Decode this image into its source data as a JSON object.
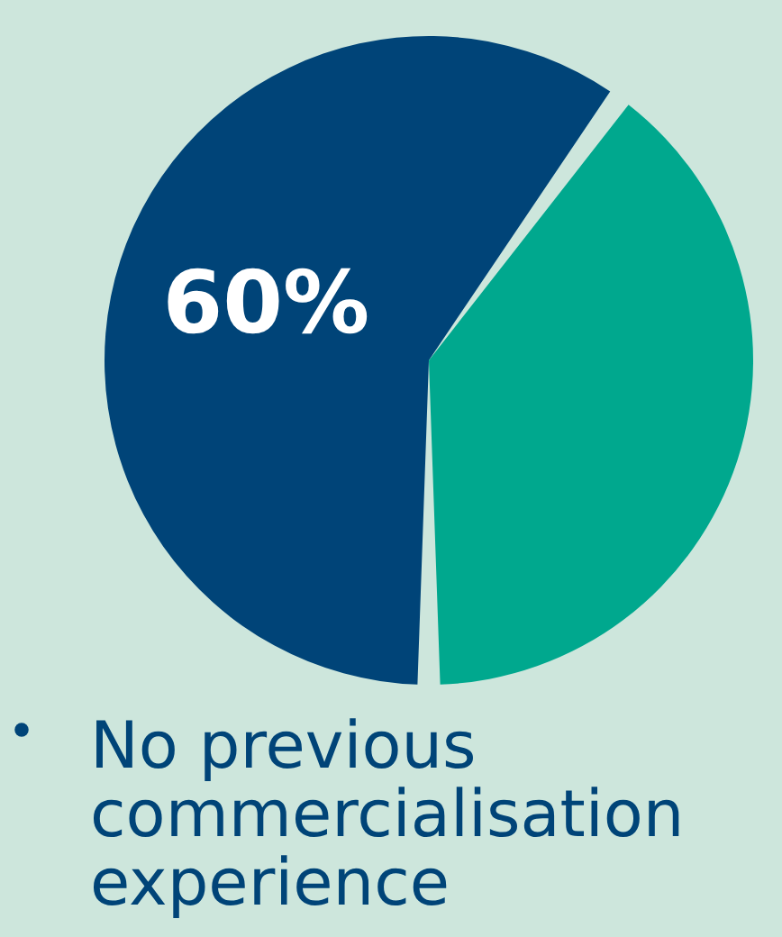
{
  "chart_data": {
    "type": "pie",
    "categories": [
      "No previous commercialisation experience",
      null
    ],
    "values": [
      60,
      40
    ],
    "colors": [
      "#004478",
      "#00a88e"
    ],
    "value_labels": [
      "60%",
      null
    ]
  }
}
